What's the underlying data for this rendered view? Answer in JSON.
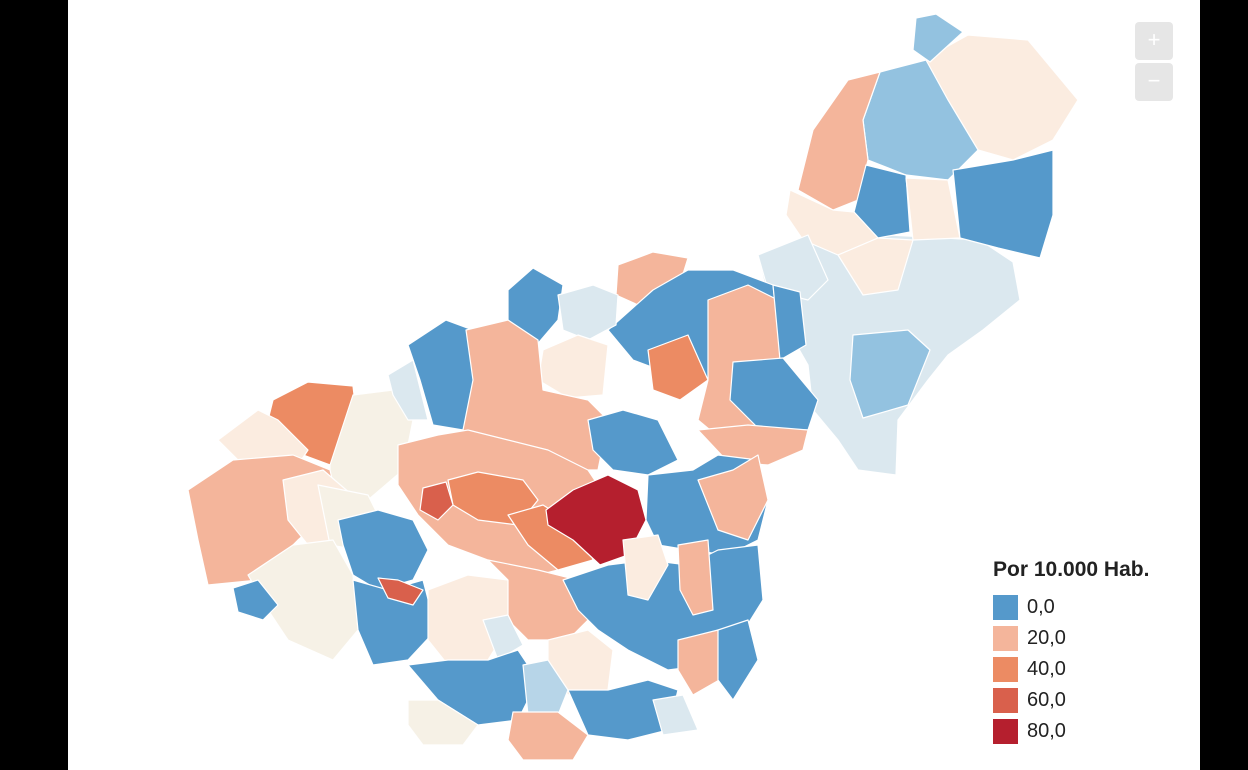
{
  "zoom": {
    "in_label": "+",
    "out_label": "−"
  },
  "legend": {
    "title": "Por 10.000 Hab.",
    "items": [
      {
        "label": "0,0",
        "color": "#5599cb"
      },
      {
        "label": "20,0",
        "color": "#f4b59b"
      },
      {
        "label": "40,0",
        "color": "#ec8b63"
      },
      {
        "label": "60,0",
        "color": "#d9604c"
      },
      {
        "label": "80,0",
        "color": "#b51f2e"
      }
    ]
  },
  "palette": {
    "blue": "#5599cb",
    "light_blue": "#93c2e0",
    "pale_blue": "#dbe8ef",
    "cream": "#fbece0",
    "pale_cream": "#f6f1e6",
    "salmon": "#f4b59b",
    "orange": "#ec8b63",
    "red": "#d9604c",
    "dark_red": "#b51f2e"
  }
}
